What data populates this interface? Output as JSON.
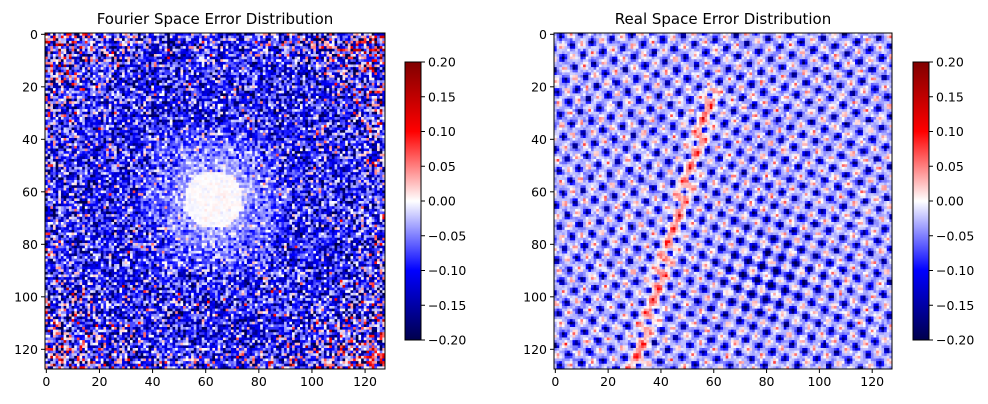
{
  "chart_data": [
    {
      "type": "heatmap",
      "title": "Fourier Space Error Distribution",
      "xlabel": "",
      "ylabel": "",
      "grid_size": 128,
      "xlim": [
        0,
        127
      ],
      "ylim": [
        127,
        0
      ],
      "xticks": [
        "0",
        "20",
        "40",
        "60",
        "80",
        "100",
        "120"
      ],
      "yticks": [
        "0",
        "20",
        "40",
        "60",
        "80",
        "100",
        "120"
      ],
      "colormap": "seismic",
      "clim": [
        -0.2,
        0.2
      ],
      "colorbar_ticks": [
        "0.20",
        "0.15",
        "0.10",
        "0.05",
        "0.00",
        "−0.05",
        "−0.10",
        "−0.15",
        "−0.20"
      ],
      "features": {
        "center": [
          63,
          63
        ],
        "hole_radius": 11,
        "halo_radius": 30,
        "hole_value": 0.0,
        "halo_value": -0.05,
        "outer_value": -0.1
      }
    },
    {
      "type": "heatmap",
      "title": "Real Space Error Distribution",
      "xlabel": "",
      "ylabel": "",
      "grid_size": 128,
      "xlim": [
        0,
        127
      ],
      "ylim": [
        127,
        0
      ],
      "xticks": [
        "0",
        "20",
        "40",
        "60",
        "80",
        "100",
        "120"
      ],
      "yticks": [
        "0",
        "20",
        "40",
        "60",
        "80",
        "100",
        "120"
      ],
      "colormap": "seismic",
      "clim": [
        -0.2,
        0.2
      ],
      "colorbar_ticks": [
        "0.20",
        "0.15",
        "0.10",
        "0.05",
        "0.00",
        "−0.05",
        "−0.10",
        "−0.15",
        "−0.20"
      ],
      "features": {
        "lattice_spacing": 8,
        "distortion_center": [
          80,
          92
        ],
        "dark_cluster_center": [
          80,
          92
        ]
      }
    }
  ],
  "colors": {
    "dark_blue": "#00004c",
    "blue": "#0000ff",
    "white": "#ffffff",
    "red": "#ff0000",
    "dark_red": "#800000"
  }
}
